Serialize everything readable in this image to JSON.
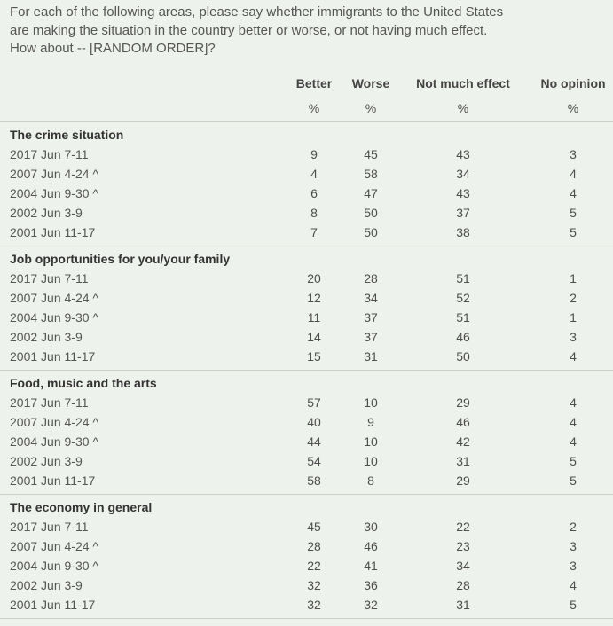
{
  "question": "For each of the following areas, please say whether immigrants to the United States are making the situation in the country better or worse, or not having much effect. How about -- [RANDOM ORDER]?",
  "columns": [
    "Better",
    "Worse",
    "Not much effect",
    "No opinion"
  ],
  "units": [
    "%",
    "%",
    "%",
    "%"
  ],
  "sections": [
    {
      "title": "The crime situation",
      "rows": [
        {
          "label": "2017 Jun 7-11",
          "values": [
            "9",
            "45",
            "43",
            "3"
          ]
        },
        {
          "label": "2007 Jun 4-24 ^",
          "values": [
            "4",
            "58",
            "34",
            "4"
          ]
        },
        {
          "label": "2004 Jun 9-30 ^",
          "values": [
            "6",
            "47",
            "43",
            "4"
          ]
        },
        {
          "label": "2002 Jun 3-9",
          "values": [
            "8",
            "50",
            "37",
            "5"
          ]
        },
        {
          "label": "2001 Jun 11-17",
          "values": [
            "7",
            "50",
            "38",
            "5"
          ]
        }
      ]
    },
    {
      "title": "Job opportunities for you/your family",
      "rows": [
        {
          "label": "2017 Jun 7-11",
          "values": [
            "20",
            "28",
            "51",
            "1"
          ]
        },
        {
          "label": "2007 Jun 4-24 ^",
          "values": [
            "12",
            "34",
            "52",
            "2"
          ]
        },
        {
          "label": "2004 Jun 9-30 ^",
          "values": [
            "11",
            "37",
            "51",
            "1"
          ]
        },
        {
          "label": "2002 Jun 3-9",
          "values": [
            "14",
            "37",
            "46",
            "3"
          ]
        },
        {
          "label": "2001 Jun 11-17",
          "values": [
            "15",
            "31",
            "50",
            "4"
          ]
        }
      ]
    },
    {
      "title": "Food, music and the arts",
      "rows": [
        {
          "label": "2017 Jun 7-11",
          "values": [
            "57",
            "10",
            "29",
            "4"
          ]
        },
        {
          "label": "2007 Jun 4-24 ^",
          "values": [
            "40",
            "9",
            "46",
            "4"
          ]
        },
        {
          "label": "2004 Jun 9-30 ^",
          "values": [
            "44",
            "10",
            "42",
            "4"
          ]
        },
        {
          "label": "2002 Jun 3-9",
          "values": [
            "54",
            "10",
            "31",
            "5"
          ]
        },
        {
          "label": "2001 Jun 11-17",
          "values": [
            "58",
            "8",
            "29",
            "5"
          ]
        }
      ]
    },
    {
      "title": "The economy in general",
      "rows": [
        {
          "label": "2017 Jun 7-11",
          "values": [
            "45",
            "30",
            "22",
            "2"
          ]
        },
        {
          "label": "2007 Jun 4-24 ^",
          "values": [
            "28",
            "46",
            "23",
            "3"
          ]
        },
        {
          "label": "2004 Jun 9-30 ^",
          "values": [
            "22",
            "41",
            "34",
            "3"
          ]
        },
        {
          "label": "2002 Jun 3-9",
          "values": [
            "32",
            "36",
            "28",
            "4"
          ]
        },
        {
          "label": "2001 Jun 11-17",
          "values": [
            "32",
            "32",
            "31",
            "5"
          ]
        }
      ]
    }
  ]
}
